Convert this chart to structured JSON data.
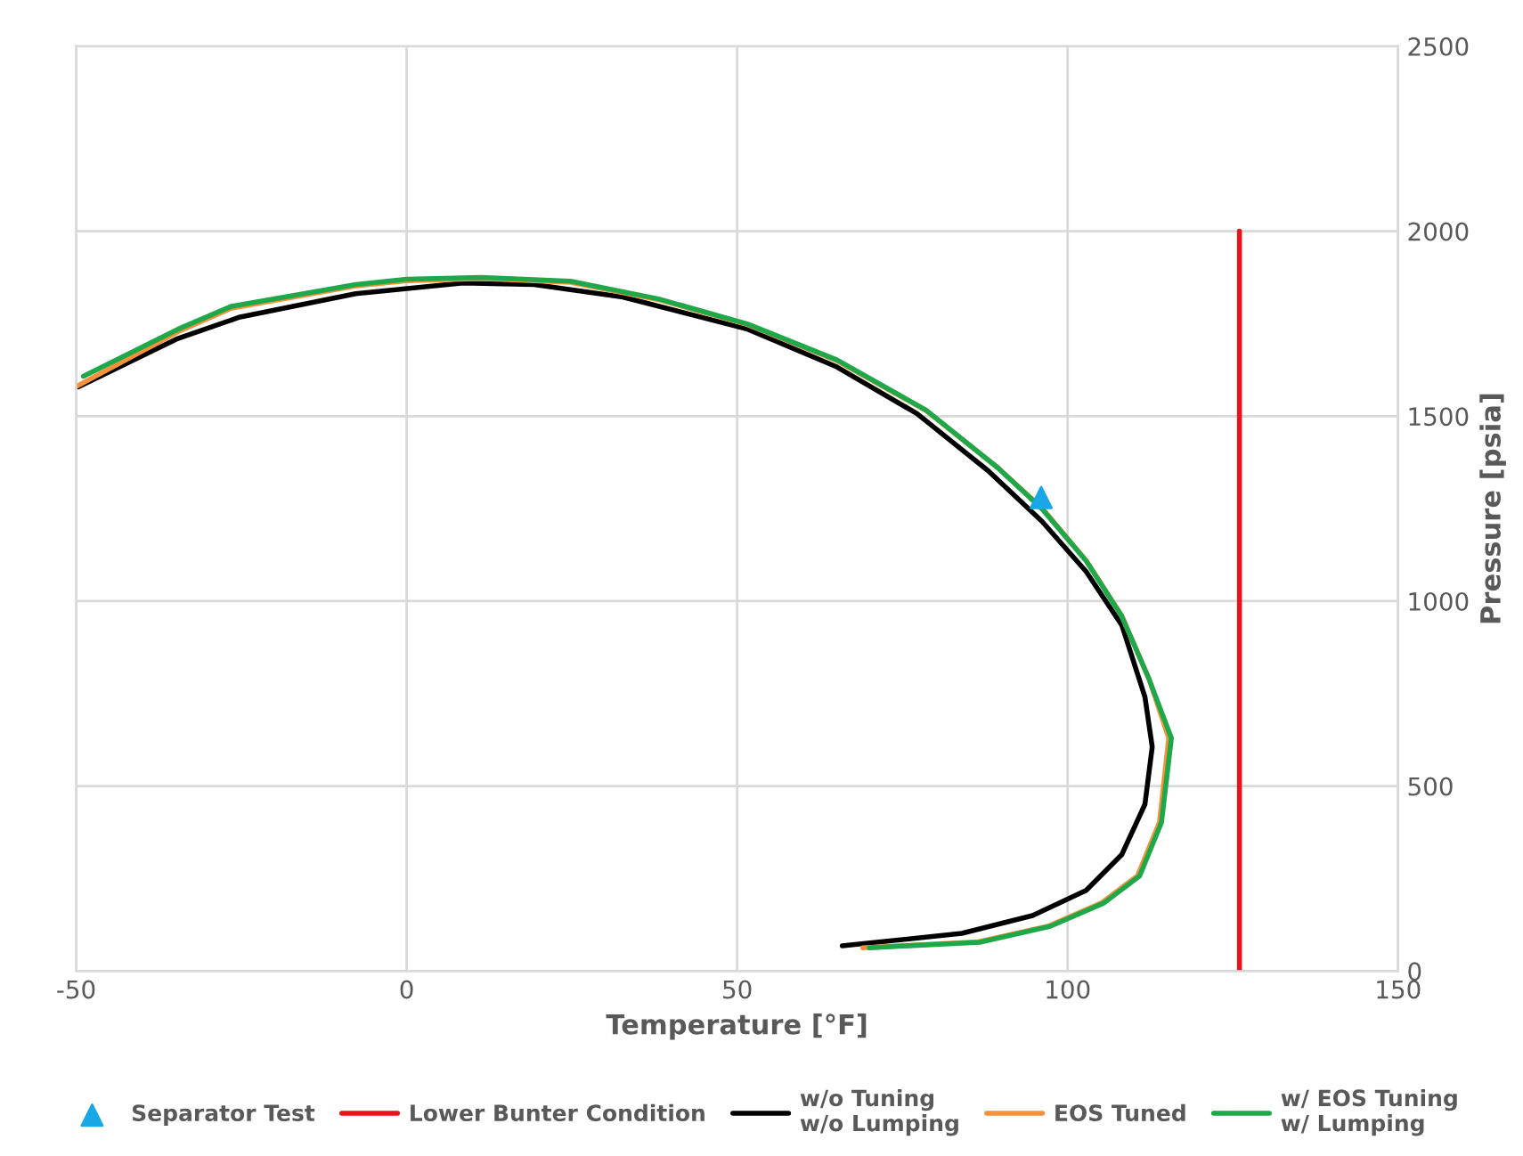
{
  "chart_data": {
    "type": "line",
    "xlabel": "Temperature [°F]",
    "y2label": "Pressure [psia]",
    "xlim": [
      -50,
      150
    ],
    "xticks": [
      -50,
      0,
      50,
      100,
      150
    ],
    "y2lim": [
      0,
      2500
    ],
    "y2ticks": [
      0,
      500,
      1000,
      1500,
      2000,
      2500
    ],
    "grid": true,
    "legend": "bottom",
    "series": [
      {
        "name": "Separator Test",
        "type": "scatter",
        "marker": "triangle",
        "color": "#1aa7e6",
        "axis": "y2",
        "x": [
          96
        ],
        "values": [
          1280
        ]
      },
      {
        "name": "Lower Bunter Condition",
        "color": "#e8141b",
        "axis": "y2",
        "x": [
          126,
          126
        ],
        "values": [
          0,
          2000
        ]
      },
      {
        "name": "w/o Tuning\nw/o Lumping",
        "color": "#000000",
        "axis": "y2",
        "x": [
          -49.7,
          -34.6,
          -25.2,
          -7.7,
          8.5,
          19.3,
          32.7,
          51.6,
          65.1,
          77.2,
          88,
          96.1,
          102.8,
          108.2,
          111.7,
          112.8,
          111.7,
          108.2,
          102.8,
          94.7,
          84,
          65.9
        ],
        "values": [
          1579,
          1710,
          1768,
          1831,
          1860,
          1856,
          1822,
          1735,
          1633,
          1507,
          1352,
          1216,
          1080,
          935,
          741,
          606,
          451,
          315,
          218,
          150,
          102,
          68
        ]
      },
      {
        "name": "EOS Tuned",
        "color": "#f4913a",
        "axis": "y2",
        "x": [
          -50,
          -34.6,
          -26.5,
          -7.7,
          0,
          11.3,
          24.8,
          38.1,
          51.6,
          65.1,
          78.6,
          89.4,
          96.1,
          102.8,
          108.2,
          112.3,
          115.3,
          113.9,
          110.6,
          105.2,
          97.2,
          86.5,
          69
        ],
        "values": [
          1580,
          1728,
          1792,
          1852,
          1866,
          1872,
          1862,
          1815,
          1747,
          1650,
          1515,
          1361,
          1252,
          1110,
          960,
          790,
          630,
          402,
          258,
          185,
          122,
          79,
          63
        ]
      },
      {
        "name": "w/ EOS Tuning\nw/ Lumping",
        "color": "#1fa84a",
        "axis": "y2",
        "x": [
          -48.9,
          -34.6,
          -26.5,
          -7.7,
          0,
          11.3,
          24.8,
          38.1,
          51.6,
          65.1,
          78.6,
          89.4,
          96.1,
          102.8,
          108.2,
          112.3,
          115.7,
          114.2,
          110.9,
          105.5,
          97.4,
          86.7,
          70
        ],
        "values": [
          1608,
          1735,
          1797,
          1856,
          1870,
          1875,
          1865,
          1817,
          1749,
          1652,
          1516,
          1361,
          1250,
          1109,
          959,
          790,
          630,
          402,
          257,
          184,
          121,
          78,
          63
        ]
      }
    ]
  }
}
